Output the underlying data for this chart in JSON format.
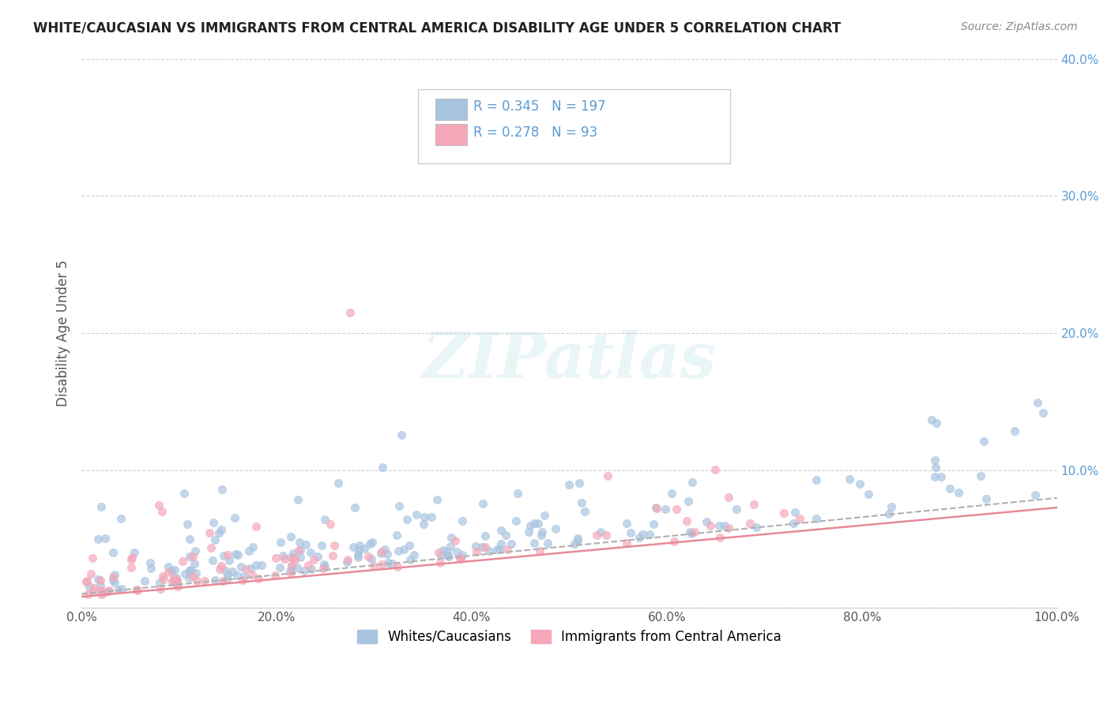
{
  "title": "WHITE/CAUCASIAN VS IMMIGRANTS FROM CENTRAL AMERICA DISABILITY AGE UNDER 5 CORRELATION CHART",
  "source": "Source: ZipAtlas.com",
  "ylabel": "Disability Age Under 5",
  "xlabel": "",
  "xlim": [
    0,
    1.0
  ],
  "ylim": [
    0,
    0.4
  ],
  "xticks": [
    0.0,
    0.2,
    0.4,
    0.6,
    0.8,
    1.0
  ],
  "xticklabels": [
    "0.0%",
    "20.0%",
    "40.0%",
    "60.0%",
    "80.0%",
    "100.0%"
  ],
  "yticks": [
    0.0,
    0.1,
    0.2,
    0.3,
    0.4
  ],
  "yticklabels": [
    "",
    "10.0%",
    "20.0%",
    "30.0%",
    "40.0%"
  ],
  "blue_R": 0.345,
  "blue_N": 197,
  "pink_R": 0.278,
  "pink_N": 93,
  "blue_color": "#a8c4e0",
  "pink_color": "#f4a7b9",
  "blue_line_color": "#5b9bd5",
  "pink_line_color": "#f4a7b9",
  "trend_line_color": "#b0b0b0",
  "watermark": "ZIPatlas",
  "legend_label_blue": "Whites/Caucasians",
  "legend_label_pink": "Immigrants from Central America",
  "background_color": "#ffffff",
  "grid_color": "#d0d0d0"
}
